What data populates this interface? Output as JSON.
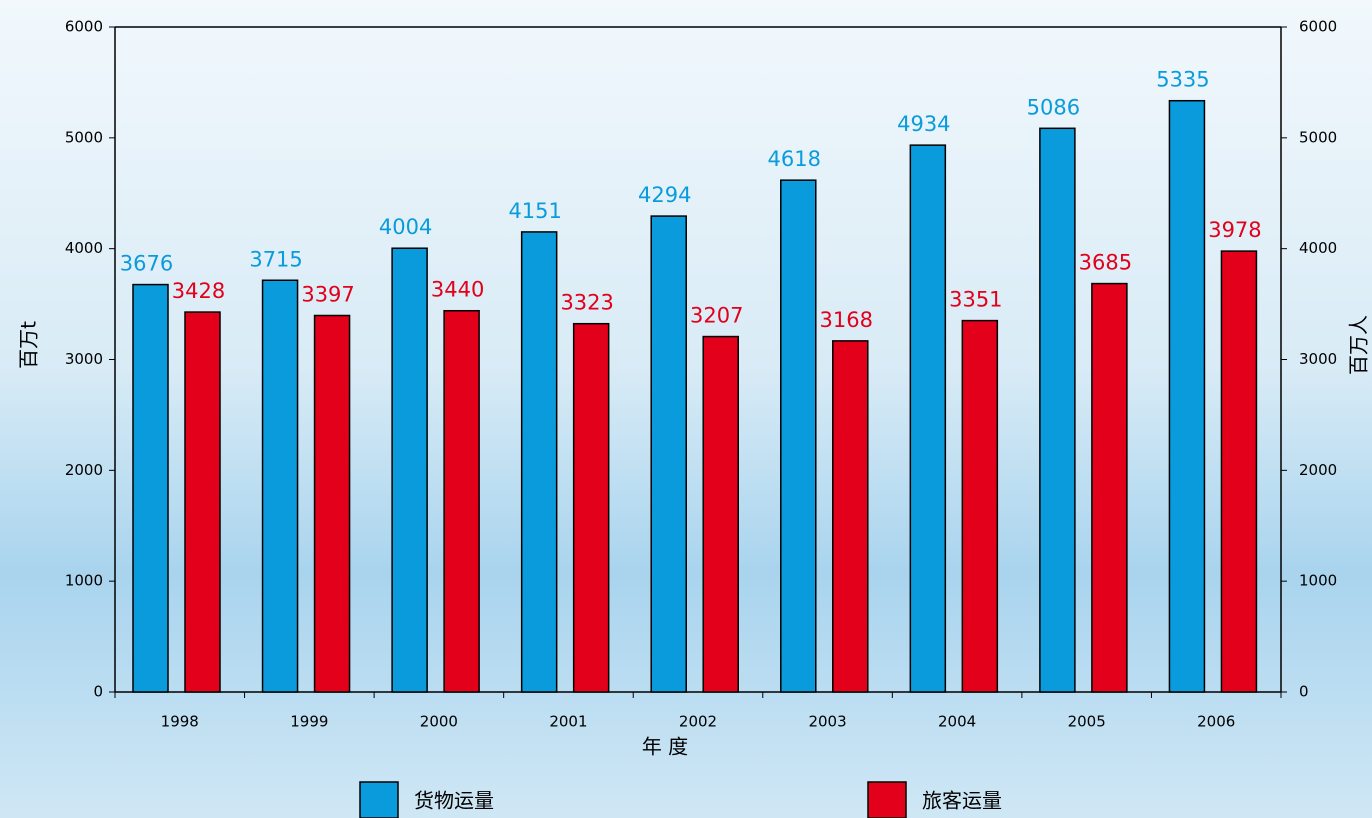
{
  "chart_data": {
    "type": "bar",
    "categories": [
      "1998",
      "1999",
      "2000",
      "2001",
      "2002",
      "2003",
      "2004",
      "2005",
      "2006"
    ],
    "series": [
      {
        "name": "货物运量",
        "color": "#0a9bdc",
        "values": [
          3676,
          3715,
          4004,
          4151,
          4294,
          4618,
          4934,
          5086,
          5335
        ]
      },
      {
        "name": "旅客运量",
        "color": "#e2001a",
        "axis": "y2",
        "values": [
          3428,
          3397,
          3440,
          3323,
          3207,
          3168,
          3351,
          3685,
          3978
        ]
      }
    ],
    "x_label": "年 度",
    "y_label": "百万t",
    "y2_label": "百万人",
    "ylim": [
      0,
      6000
    ],
    "yticks": [
      0,
      1000,
      2000,
      3000,
      4000,
      5000,
      6000
    ],
    "y2lim": [
      0,
      6000
    ],
    "y2ticks": [
      0,
      1000,
      2000,
      3000,
      4000,
      5000,
      6000
    ],
    "legend": "bottom"
  }
}
